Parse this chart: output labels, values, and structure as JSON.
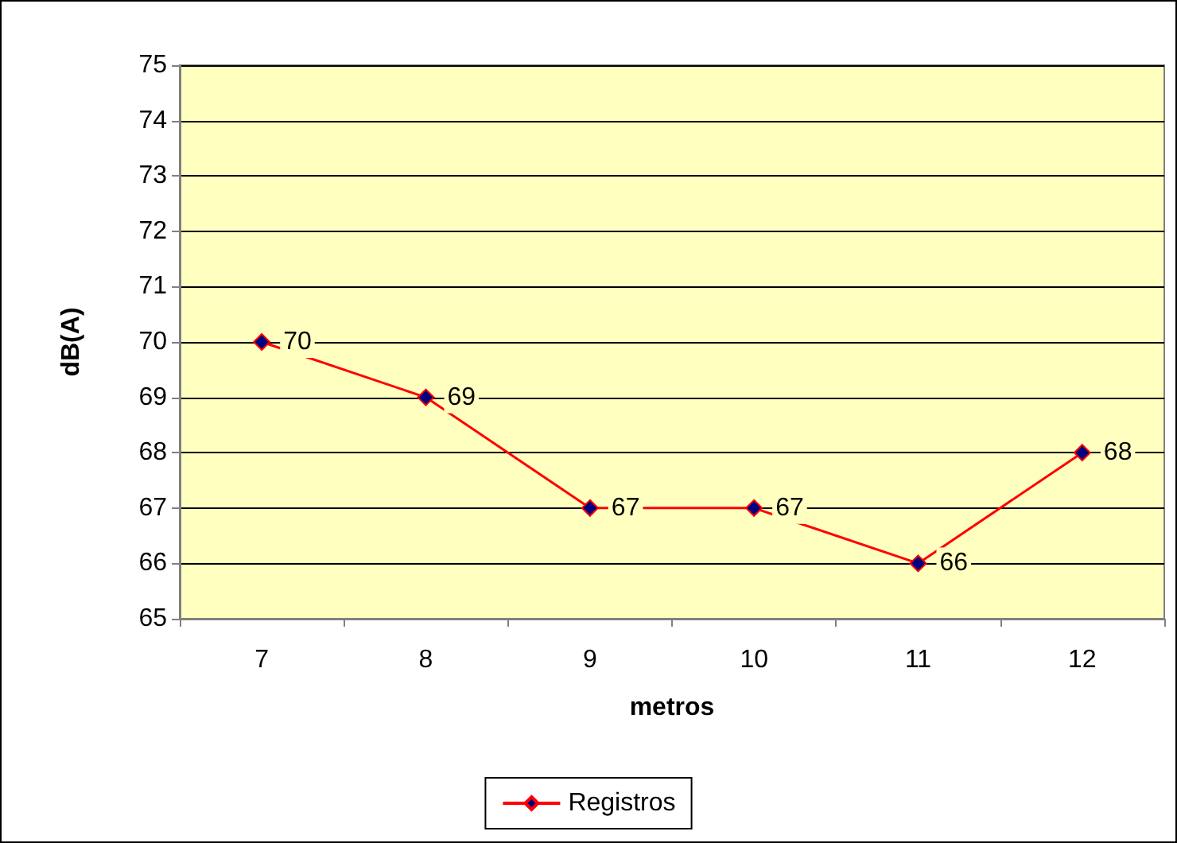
{
  "chart_data": {
    "type": "line",
    "xlabel": "metros",
    "ylabel": "dB(A)",
    "categories": [
      "7",
      "8",
      "9",
      "10",
      "11",
      "12"
    ],
    "series": [
      {
        "name": "Registros",
        "color": "#ff0000",
        "values": [
          70,
          69,
          67,
          67,
          66,
          68
        ]
      }
    ],
    "ylim": [
      65,
      75
    ],
    "yticks": [
      65,
      66,
      67,
      68,
      69,
      70,
      71,
      72,
      73,
      74,
      75
    ],
    "grid": "y",
    "legend": "bottom",
    "marker": "diamond",
    "data_labels": true
  }
}
